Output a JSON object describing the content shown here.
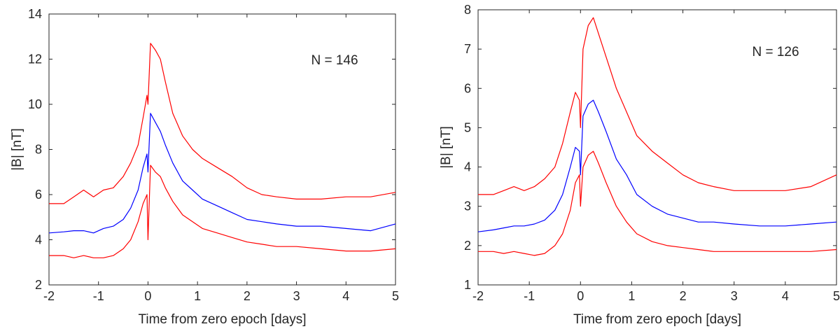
{
  "chart_data": [
    {
      "type": "line",
      "xlabel": "Time from zero epoch [days]",
      "ylabel": "|B| [nT]",
      "annotation": "N = 146",
      "xlim": [
        -2,
        5
      ],
      "ylim": [
        2,
        14
      ],
      "xticks": [
        "-2",
        "-1",
        "0",
        "1",
        "2",
        "3",
        "4",
        "5"
      ],
      "yticks": [
        "2",
        "4",
        "6",
        "8",
        "10",
        "12",
        "14"
      ],
      "colors": {
        "mean": "#0000ff",
        "bounds": "#ff0000"
      },
      "series": [
        {
          "role": "upper",
          "x": [
            -2,
            -1.7,
            -1.5,
            -1.3,
            -1.1,
            -0.9,
            -0.7,
            -0.5,
            -0.35,
            -0.2,
            -0.1,
            -0.02,
            0.0,
            0.05,
            0.15,
            0.25,
            0.35,
            0.5,
            0.7,
            0.9,
            1.1,
            1.4,
            1.7,
            2.0,
            2.3,
            2.6,
            3.0,
            3.5,
            4.0,
            4.5,
            5.0
          ],
          "y": [
            5.6,
            5.6,
            5.9,
            6.2,
            5.9,
            6.2,
            6.3,
            6.8,
            7.4,
            8.2,
            9.4,
            10.4,
            10.0,
            12.7,
            12.4,
            12.0,
            11.0,
            9.6,
            8.6,
            8.0,
            7.6,
            7.2,
            6.8,
            6.3,
            6.0,
            5.9,
            5.8,
            5.8,
            5.9,
            5.9,
            6.1
          ]
        },
        {
          "role": "mean",
          "x": [
            -2,
            -1.7,
            -1.5,
            -1.3,
            -1.1,
            -0.9,
            -0.7,
            -0.5,
            -0.35,
            -0.2,
            -0.1,
            -0.02,
            0.0,
            0.05,
            0.15,
            0.25,
            0.35,
            0.5,
            0.7,
            0.9,
            1.1,
            1.4,
            1.7,
            2.0,
            2.3,
            2.6,
            3.0,
            3.5,
            4.0,
            4.5,
            5.0
          ],
          "y": [
            4.3,
            4.35,
            4.4,
            4.4,
            4.3,
            4.5,
            4.6,
            4.9,
            5.4,
            6.2,
            7.2,
            7.8,
            7.0,
            9.6,
            9.2,
            8.8,
            8.2,
            7.4,
            6.6,
            6.2,
            5.8,
            5.5,
            5.2,
            4.9,
            4.8,
            4.7,
            4.6,
            4.6,
            4.5,
            4.4,
            4.7
          ]
        },
        {
          "role": "lower",
          "x": [
            -2,
            -1.7,
            -1.5,
            -1.3,
            -1.1,
            -0.9,
            -0.7,
            -0.5,
            -0.35,
            -0.2,
            -0.1,
            -0.02,
            0.0,
            0.05,
            0.15,
            0.25,
            0.35,
            0.5,
            0.7,
            0.9,
            1.1,
            1.4,
            1.7,
            2.0,
            2.3,
            2.6,
            3.0,
            3.5,
            4.0,
            4.5,
            5.0
          ],
          "y": [
            3.3,
            3.3,
            3.2,
            3.3,
            3.2,
            3.2,
            3.3,
            3.6,
            4.0,
            4.8,
            5.6,
            6.0,
            4.0,
            7.3,
            7.0,
            6.8,
            6.3,
            5.7,
            5.1,
            4.8,
            4.5,
            4.3,
            4.1,
            3.9,
            3.8,
            3.7,
            3.7,
            3.6,
            3.5,
            3.5,
            3.6
          ]
        }
      ]
    },
    {
      "type": "line",
      "xlabel": "Time from zero epoch [days]",
      "ylabel": "|B| [nT]",
      "annotation": "N = 126",
      "xlim": [
        -2,
        5
      ],
      "ylim": [
        1,
        8
      ],
      "xticks": [
        "-2",
        "-1",
        "0",
        "1",
        "2",
        "3",
        "4",
        "5"
      ],
      "yticks": [
        "1",
        "2",
        "3",
        "4",
        "5",
        "6",
        "7",
        "8"
      ],
      "colors": {
        "mean": "#0000ff",
        "bounds": "#ff0000"
      },
      "series": [
        {
          "role": "upper",
          "x": [
            -2,
            -1.7,
            -1.5,
            -1.3,
            -1.1,
            -0.9,
            -0.7,
            -0.5,
            -0.35,
            -0.2,
            -0.1,
            -0.02,
            0.0,
            0.05,
            0.15,
            0.25,
            0.35,
            0.5,
            0.7,
            0.9,
            1.1,
            1.4,
            1.7,
            2.0,
            2.3,
            2.6,
            3.0,
            3.5,
            4.0,
            4.5,
            5.0
          ],
          "y": [
            3.3,
            3.3,
            3.4,
            3.5,
            3.4,
            3.5,
            3.7,
            4.0,
            4.6,
            5.4,
            5.9,
            5.7,
            5.0,
            7.0,
            7.6,
            7.8,
            7.4,
            6.8,
            6.0,
            5.4,
            4.8,
            4.4,
            4.1,
            3.8,
            3.6,
            3.5,
            3.4,
            3.4,
            3.4,
            3.5,
            3.8
          ]
        },
        {
          "role": "mean",
          "x": [
            -2,
            -1.7,
            -1.5,
            -1.3,
            -1.1,
            -0.9,
            -0.7,
            -0.5,
            -0.35,
            -0.2,
            -0.1,
            -0.02,
            0.0,
            0.05,
            0.15,
            0.25,
            0.35,
            0.5,
            0.7,
            0.9,
            1.1,
            1.4,
            1.7,
            2.0,
            2.3,
            2.6,
            3.0,
            3.5,
            4.0,
            4.5,
            5.0
          ],
          "y": [
            2.35,
            2.4,
            2.45,
            2.5,
            2.5,
            2.55,
            2.65,
            2.9,
            3.3,
            4.0,
            4.5,
            4.4,
            3.8,
            5.3,
            5.6,
            5.7,
            5.4,
            4.9,
            4.2,
            3.8,
            3.3,
            3.0,
            2.8,
            2.7,
            2.6,
            2.6,
            2.55,
            2.5,
            2.5,
            2.55,
            2.6
          ]
        },
        {
          "role": "lower",
          "x": [
            -2,
            -1.7,
            -1.5,
            -1.3,
            -1.1,
            -0.9,
            -0.7,
            -0.5,
            -0.35,
            -0.2,
            -0.1,
            -0.02,
            0.0,
            0.05,
            0.15,
            0.25,
            0.35,
            0.5,
            0.7,
            0.9,
            1.1,
            1.4,
            1.7,
            2.0,
            2.3,
            2.6,
            3.0,
            3.5,
            4.0,
            4.5,
            5.0
          ],
          "y": [
            1.85,
            1.85,
            1.8,
            1.85,
            1.8,
            1.75,
            1.8,
            2.0,
            2.3,
            2.9,
            3.6,
            3.8,
            3.0,
            4.0,
            4.3,
            4.4,
            4.1,
            3.6,
            3.0,
            2.6,
            2.3,
            2.1,
            2.0,
            1.95,
            1.9,
            1.85,
            1.85,
            1.85,
            1.85,
            1.85,
            1.9
          ]
        }
      ]
    }
  ]
}
